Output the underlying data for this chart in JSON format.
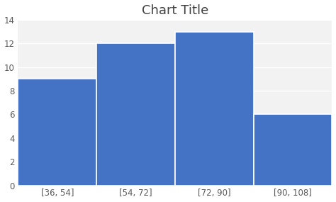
{
  "title": "Chart Title",
  "categories": [
    "[36, 54]",
    "[54, 72]",
    "[72, 90]",
    "[90, 108]"
  ],
  "values": [
    9,
    12,
    13,
    6
  ],
  "bar_color": "#4472C4",
  "bar_edge_color": "#ffffff",
  "bar_edge_width": 1.2,
  "ylim": [
    0,
    14
  ],
  "yticks": [
    0,
    2,
    4,
    6,
    8,
    10,
    12,
    14
  ],
  "background_color": "#ffffff",
  "plot_bg_color": "#f2f2f2",
  "grid_color": "#ffffff",
  "title_fontsize": 13,
  "tick_fontsize": 8.5,
  "tick_color": "#595959",
  "title_color": "#404040"
}
